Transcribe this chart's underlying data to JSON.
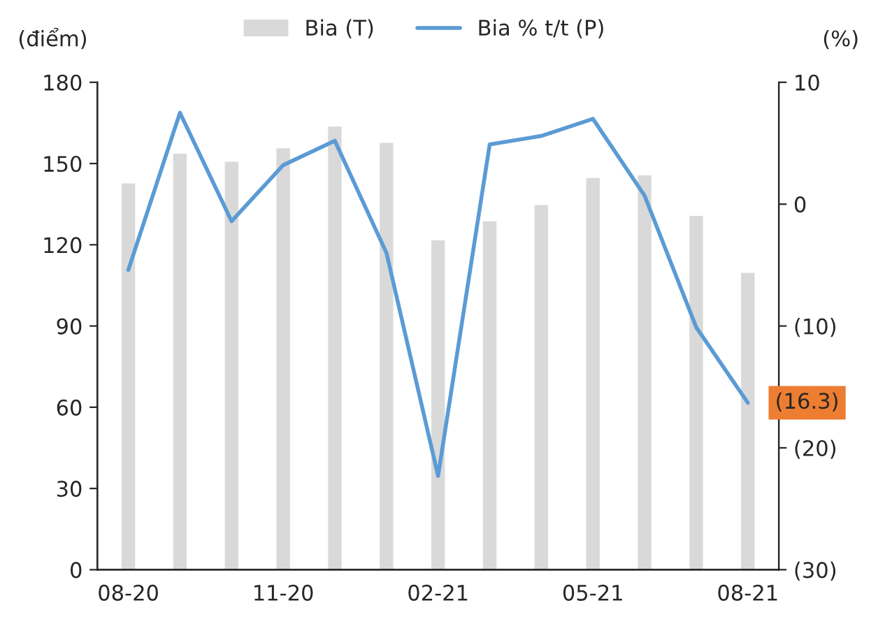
{
  "chart_data": {
    "type": "bar",
    "categories": [
      "08-20",
      null,
      null,
      "11-20",
      null,
      null,
      "02-21",
      null,
      null,
      "05-21",
      null,
      null,
      "08-21"
    ],
    "series": [
      {
        "name": "Bia (T)",
        "color": "#d9d9d9",
        "values": [
          143,
          154,
          151,
          156,
          164,
          158,
          122,
          129,
          135,
          145,
          146,
          131,
          110
        ]
      },
      {
        "name": "Bia % t/t (P)",
        "type": "line",
        "axis": "y2",
        "color": "#5b9bd5",
        "values": [
          -5.4,
          7.5,
          -1.4,
          3.2,
          5.2,
          -4.0,
          -22.3,
          4.9,
          5.6,
          7.0,
          0.7,
          -10.1,
          -16.3
        ],
        "value_labels": [
          null,
          null,
          null,
          null,
          null,
          null,
          null,
          null,
          null,
          null,
          null,
          null,
          "(16.3)"
        ]
      }
    ],
    "ylabel": "(điểm)",
    "y2label": "(%)",
    "ylim": [
      0,
      180
    ],
    "yticks": [
      0,
      30,
      60,
      90,
      120,
      150,
      180
    ],
    "y2lim": [
      -30,
      10
    ],
    "y2ticks": [
      {
        "value": -30,
        "label": "(30)"
      },
      {
        "value": -20,
        "label": "(20)"
      },
      {
        "value": -10,
        "label": "(10)"
      },
      0,
      10
    ],
    "legend": "top",
    "grid": false,
    "marker": "none",
    "line_style": "solid"
  }
}
